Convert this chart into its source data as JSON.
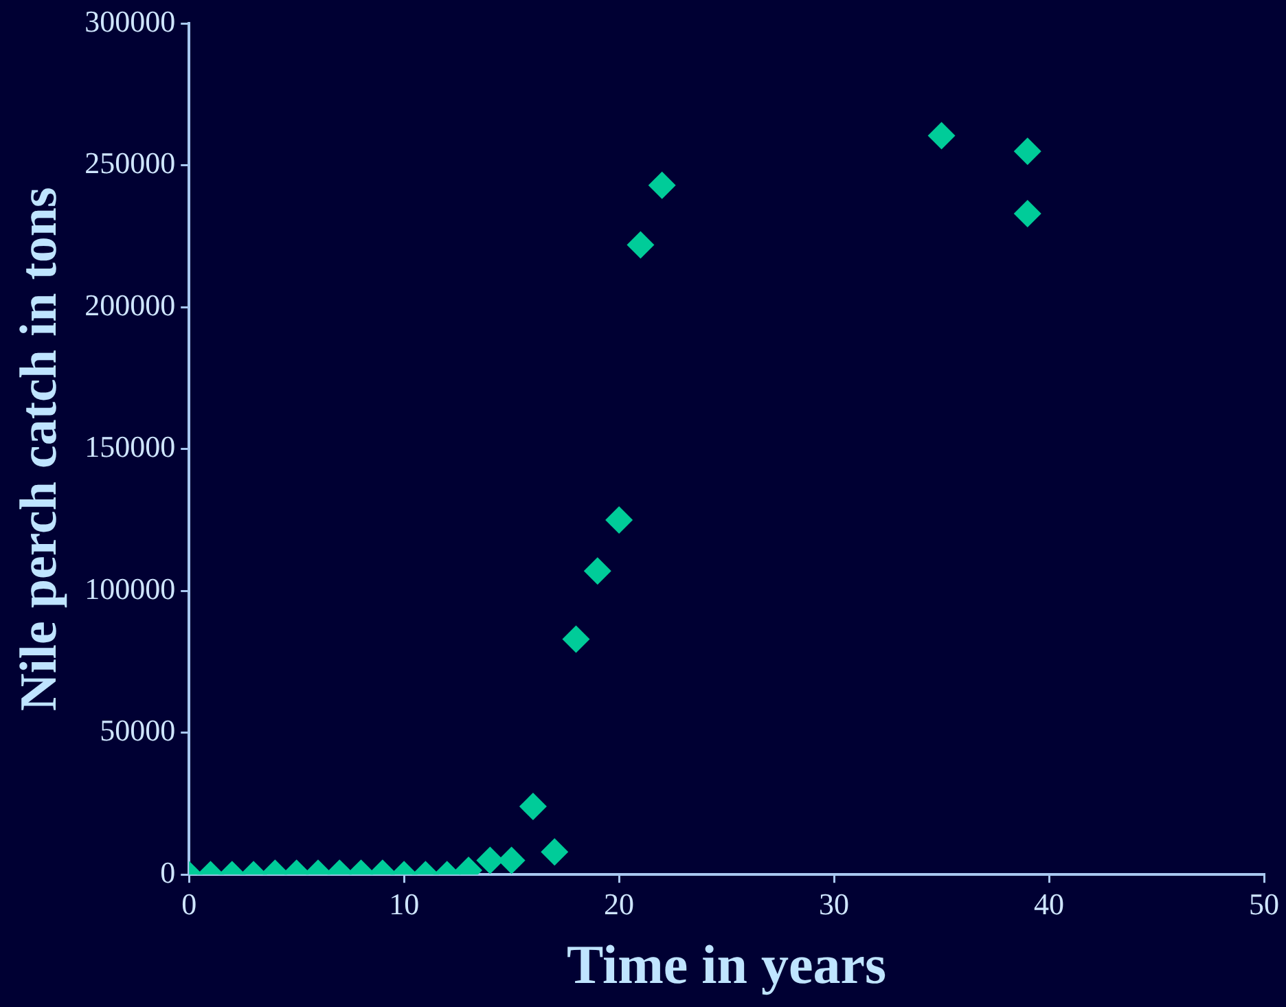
{
  "chart_data": {
    "type": "scatter",
    "xlabel": "Time in years",
    "ylabel": "Nile perch catch in tons",
    "x": [
      0,
      1,
      2,
      3,
      4,
      5,
      6,
      7,
      8,
      9,
      10,
      11,
      12,
      13,
      14,
      15,
      16,
      17,
      18,
      19,
      20,
      21,
      22,
      35,
      39,
      39
    ],
    "series": [
      {
        "color": "#00cc99",
        "values": [
          0,
          0,
          0,
          0,
          500,
          500,
          500,
          500,
          500,
          500,
          0,
          0,
          0,
          1500,
          5000,
          5000,
          24000,
          8000,
          83000,
          107000,
          125000,
          222000,
          243000,
          260500,
          255000,
          233000
        ]
      }
    ],
    "xlim": [
      0,
      50
    ],
    "xticks": [
      0,
      10,
      20,
      30,
      40,
      50
    ],
    "ylim": [
      0,
      300000
    ],
    "yticks": [
      0,
      50000,
      100000,
      150000,
      200000,
      250000,
      300000
    ],
    "grid": false,
    "legend": false,
    "marker": "diamond"
  }
}
